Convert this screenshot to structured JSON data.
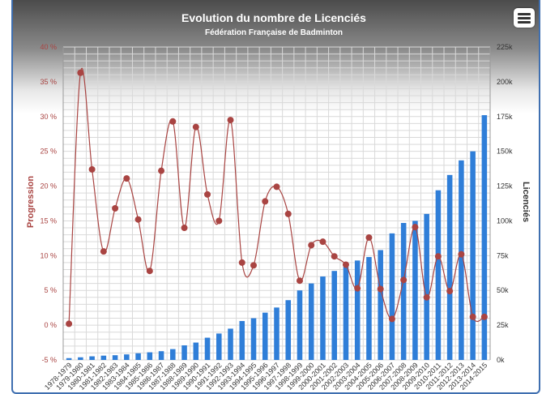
{
  "colors": {
    "bar": "#2f7ed8",
    "line": "#a94442",
    "marker": "#a94442",
    "grid": "#d9d9d9",
    "left_axis_text": "#a94442",
    "right_axis_text": "#333333",
    "title": "#ffffff"
  },
  "menu": {
    "icon": "hamburger-menu-icon"
  },
  "chart_data": {
    "type": "bar+line",
    "title": "Evolution du nombre de Licenciés",
    "subtitle": "Fédération Française de Badminton",
    "y_left": {
      "label": "Progression",
      "min": -5,
      "max": 40,
      "ticks": [
        -5,
        0,
        5,
        10,
        15,
        20,
        25,
        30,
        35,
        40
      ],
      "tick_labels": [
        "-5 %",
        "0 %",
        "5 %",
        "10 %",
        "15 %",
        "20 %",
        "25 %",
        "30 %",
        "35 %",
        "40 %"
      ]
    },
    "y_right": {
      "label": "Licenciés",
      "min": 0,
      "max": 225000,
      "ticks": [
        0,
        25000,
        50000,
        75000,
        100000,
        125000,
        150000,
        175000,
        200000,
        225000
      ],
      "tick_labels": [
        "0k",
        "25k",
        "50k",
        "75k",
        "100k",
        "125k",
        "150k",
        "175k",
        "200k",
        "225k"
      ]
    },
    "grid": true,
    "categories": [
      "1978-1979",
      "1979-1980",
      "1980-1981",
      "1981-1982",
      "1982-1983",
      "1983-1984",
      "1984-1985",
      "1985-1986",
      "1986-1987",
      "1987-1988",
      "1988-1989",
      "1989-1990",
      "1990-1991",
      "1991-1992",
      "1992-1993",
      "1993-1994",
      "1994-1995",
      "1995-1996",
      "1996-1997",
      "1997-1998",
      "1998-1999",
      "1999-2000",
      "2000-2001",
      "2001-2002",
      "2002-2003",
      "2003-2004",
      "2004-2005",
      "2005-2006",
      "2006-2007",
      "2007-2008",
      "2008-2009",
      "2009-2010",
      "2010-2011",
      "2011-2012",
      "2012-2013",
      "2013-2014",
      "2014-2015"
    ],
    "series": [
      {
        "name": "Licenciés",
        "type": "bar",
        "axis": "right",
        "values": [
          1300,
          1900,
          2600,
          3100,
          3400,
          4000,
          4800,
          5500,
          6300,
          7800,
          10500,
          12500,
          16000,
          19000,
          22500,
          28000,
          30000,
          34000,
          37700,
          43000,
          50000,
          55000,
          60000,
          64000,
          67000,
          71500,
          74000,
          79000,
          91000,
          98500,
          100000,
          105000,
          122000,
          133000,
          143500,
          150000,
          176000
        ]
      },
      {
        "name": "Progression",
        "type": "spline",
        "axis": "left",
        "values": [
          0.2,
          36.3,
          22.4,
          10.6,
          16.8,
          21.1,
          15.2,
          7.8,
          22.2,
          29.3,
          14.0,
          28.5,
          18.8,
          15.0,
          29.5,
          9.0,
          8.6,
          17.8,
          19.9,
          16.0,
          6.4,
          11.5,
          12.0,
          9.9,
          8.7,
          5.3,
          12.6,
          5.2,
          0.9,
          6.5,
          14.1,
          4.0,
          9.9,
          4.9,
          10.2,
          1.2,
          1.2
        ]
      }
    ]
  }
}
